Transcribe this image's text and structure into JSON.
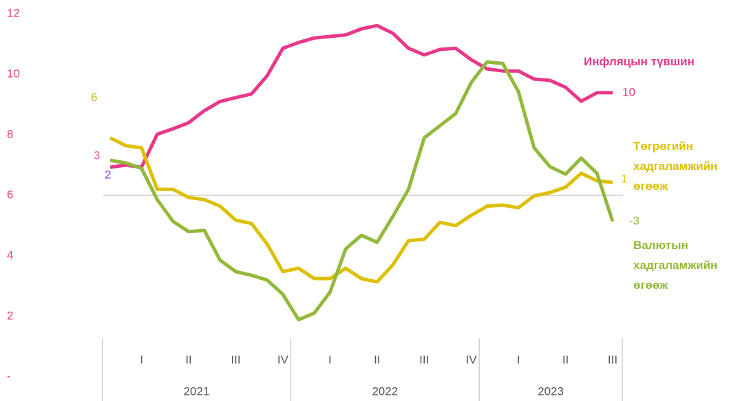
{
  "chart_data": {
    "type": "line",
    "categories": [
      null,
      null,
      null,
      null,
      null,
      null,
      null,
      null,
      null,
      null,
      null,
      null,
      null,
      null,
      null,
      null,
      null,
      null,
      null,
      null,
      null,
      null,
      null,
      null,
      null,
      null,
      null,
      null,
      null,
      null,
      null,
      null,
      null
    ],
    "quarters": [
      "I",
      "II",
      "III",
      "IV",
      "I",
      "II",
      "III",
      "IV",
      "I",
      "II",
      "III"
    ],
    "years": [
      "2021",
      "2022",
      "2023"
    ],
    "ylim": [
      0,
      12
    ],
    "yticks": [
      {
        "value": 0,
        "label": "-"
      },
      2,
      4,
      6,
      8,
      10,
      12
    ],
    "hline": 6,
    "axis_color": "#e0457f",
    "series": [
      {
        "name": "Инфляцын түвшин",
        "color": "#e8388a",
        "start_label": "3",
        "start_label_color": "#f0648f",
        "end_label": "10",
        "values": [
          6.93,
          7.0,
          6.93,
          8.02,
          8.2,
          8.4,
          8.8,
          9.1,
          9.23,
          9.35,
          9.95,
          10.86,
          11.05,
          11.2,
          11.25,
          11.3,
          11.5,
          11.61,
          11.36,
          10.86,
          10.64,
          10.82,
          10.86,
          10.48,
          10.18,
          10.11,
          10.11,
          9.84,
          9.8,
          9.57,
          9.11,
          9.39,
          9.39
        ]
      },
      {
        "name": "Төгрөгийн хадгаламжийн өгөөж",
        "color": "#dcc000",
        "start_label": "6",
        "start_label_color": "#d4b800",
        "end_label": "1",
        "values": [
          7.9,
          7.64,
          7.57,
          6.2,
          6.2,
          5.93,
          5.86,
          5.64,
          5.18,
          5.07,
          4.39,
          3.48,
          3.59,
          3.25,
          3.25,
          3.59,
          3.25,
          3.14,
          3.7,
          4.5,
          4.55,
          5.11,
          5.0,
          5.34,
          5.64,
          5.68,
          5.59,
          5.98,
          6.09,
          6.27,
          6.73,
          6.48,
          6.43
        ]
      },
      {
        "name": "Валютын хадгаламжийн өгөөж",
        "color": "#93b83a",
        "start_label": "2",
        "start_label_color": "#8a3ffc",
        "end_label": "-3",
        "values": [
          7.16,
          7.07,
          6.89,
          5.86,
          5.14,
          4.8,
          4.84,
          3.86,
          3.48,
          3.36,
          3.2,
          2.73,
          1.89,
          2.11,
          2.8,
          4.23,
          4.68,
          4.45,
          5.3,
          6.2,
          7.9,
          8.3,
          8.7,
          9.73,
          10.41,
          10.36,
          9.43,
          7.57,
          6.95,
          6.7,
          7.23,
          6.73,
          5.14
        ]
      }
    ]
  }
}
